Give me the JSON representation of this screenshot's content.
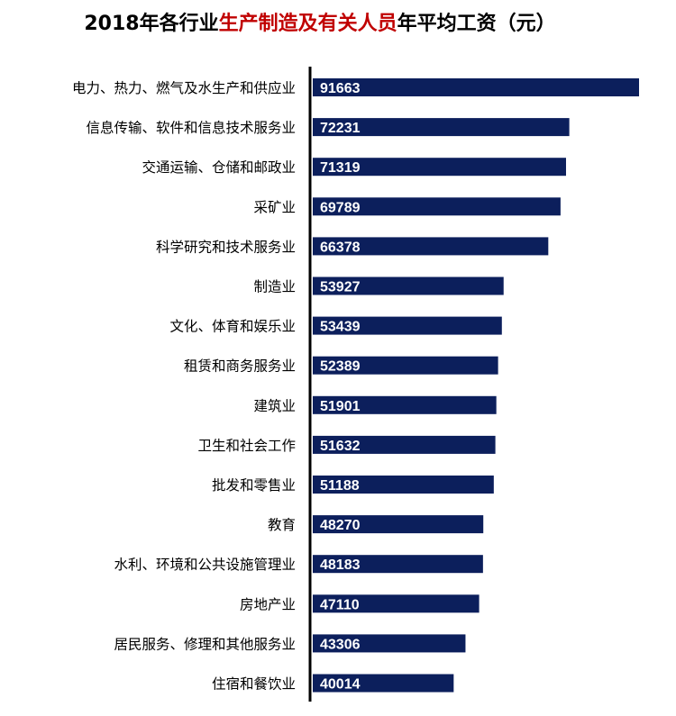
{
  "title": {
    "prefix": "2018年各行业",
    "highlight": "生产制造及有关人员",
    "suffix": "年平均工资（元）"
  },
  "colors": {
    "bar": "#0c1f5c",
    "title_highlight": "#c00000",
    "axis": "#000000",
    "bar_label": "#ffffff"
  },
  "chart_data": {
    "type": "bar",
    "orientation": "horizontal",
    "title": "2018年各行业生产制造及有关人员年平均工资（元）",
    "xlabel": "",
    "ylabel": "",
    "grid": false,
    "legend": "none",
    "categories": [
      "电力、热力、燃气及水生产和供应业",
      "信息传输、软件和信息技术服务业",
      "交通运输、仓储和邮政业",
      "采矿业",
      "科学研究和技术服务业",
      "制造业",
      "文化、体育和娱乐业",
      "租赁和商务服务业",
      "建筑业",
      "卫生和社会工作",
      "批发和零售业",
      "教育",
      "水利、环境和公共设施管理业",
      "房地产业",
      "居民服务、修理和其他服务业",
      "住宿和餐饮业"
    ],
    "values": [
      91663,
      72231,
      71319,
      69789,
      66378,
      53927,
      53439,
      52389,
      51901,
      51632,
      51188,
      48270,
      48183,
      47110,
      43306,
      40014
    ],
    "xlim": [
      0,
      102000
    ]
  }
}
